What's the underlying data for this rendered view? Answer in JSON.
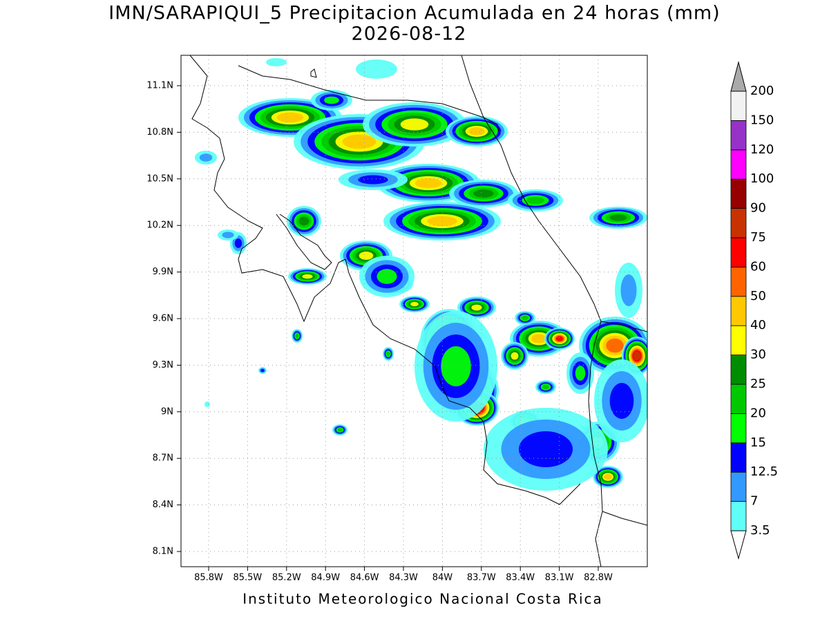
{
  "title": "IMN/SARAPIQUI_5 Precipitacion Acumulada en 24 horas (mm)",
  "date": "2026-08-12",
  "lat_labels": [
    "11.1N",
    "10.8N",
    "10.5N",
    "10.2N",
    "9.9N",
    "9.6N",
    "9.3N",
    "9N",
    "8.7N",
    "8.4N",
    "8.1N"
  ],
  "lon_labels": [
    "85.8W",
    "85.5W",
    "85.2W",
    "84.9W",
    "84.6W",
    "84.3W",
    "84W",
    "83.7W",
    "83.4W",
    "83.1W",
    "82.8W"
  ],
  "colorbar": {
    "levels": [
      3.5,
      7,
      12.5,
      15,
      20,
      25,
      30,
      40,
      50,
      60,
      75,
      90,
      100,
      120,
      150,
      200
    ],
    "colors": [
      "#5ffff7",
      "#3399ff",
      "#0000ff",
      "#00ff00",
      "#00c800",
      "#008c00",
      "#ffff00",
      "#ffc800",
      "#ff6400",
      "#ff0000",
      "#c83200",
      "#960000",
      "#ff00ff",
      "#9632c8",
      "#f2f2f2"
    ],
    "over_color": "#aaaaaa",
    "under_color": "#ffffff"
  },
  "footer": "Instituto Meteorologico Nacional Costa Rica"
}
